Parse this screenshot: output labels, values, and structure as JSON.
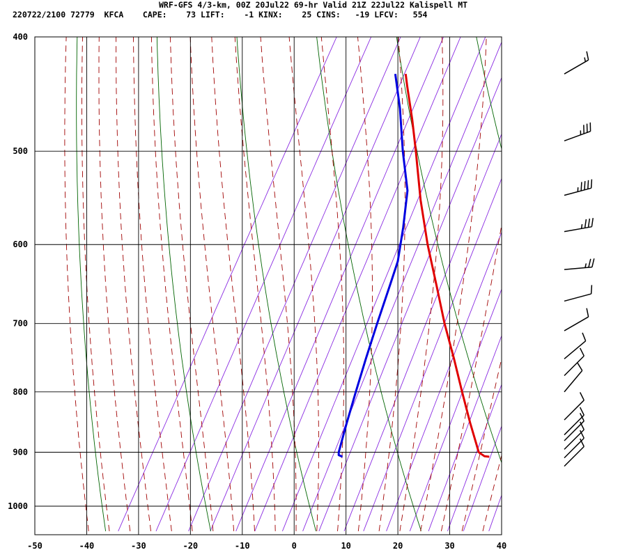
{
  "header": {
    "line1": "WRF-GFS 4/3-km, 00Z 20Jul22 69-hr Valid 21Z 22Jul22 Kalispell MT",
    "line2": "220722/2100 72779  KFCA    CAPE:    73 LIFT:    -1 KINX:    25 CINS:   -19 LFCV:   554"
  },
  "colors": {
    "temperature": "#e00000",
    "dewpoint": "#0000e0",
    "isotherm_grid": "#000000",
    "dry_adiabat": "#006400",
    "moist_adiabat": "#a00000",
    "mixing_ratio": "#8a2be2",
    "wind_barb": "#000000"
  },
  "chart_data": {
    "type": "line",
    "subtype": "skew-t log-p sounding",
    "title": "WRF-GFS 4/3-km, 00Z 20Jul22 69-hr Valid 21Z 22Jul22 Kalispell MT",
    "xlabel": "",
    "ylabel": "",
    "x_ticks": [
      "-50",
      "-40",
      "-30",
      "-20",
      "-10",
      "0",
      "10",
      "20",
      "30",
      "40"
    ],
    "y_ticks": [
      "400",
      "500",
      "600",
      "700",
      "800",
      "900",
      "1000"
    ],
    "xlim": [
      -50,
      40
    ],
    "ylim": [
      1050,
      400
    ],
    "y_scale": "log",
    "grid": true,
    "series": [
      {
        "key": "temperature",
        "points": [
          {
            "p": 908,
            "t": 29.5
          },
          {
            "p": 907,
            "t": 28.5
          },
          {
            "p": 900,
            "t": 27.0
          },
          {
            "p": 850,
            "t": 22.3
          },
          {
            "p": 800,
            "t": 17.5
          },
          {
            "p": 750,
            "t": 12.5
          },
          {
            "p": 700,
            "t": 7.0
          },
          {
            "p": 650,
            "t": 1.5
          },
          {
            "p": 600,
            "t": -4.5
          },
          {
            "p": 550,
            "t": -10.5
          },
          {
            "p": 500,
            "t": -16.5
          },
          {
            "p": 470,
            "t": -20.5
          },
          {
            "p": 440,
            "t": -25.0
          },
          {
            "p": 430,
            "t": -26.5
          }
        ]
      },
      {
        "key": "dewpoint",
        "points": [
          {
            "p": 908,
            "t": 1.2
          },
          {
            "p": 905,
            "t": 0.3
          },
          {
            "p": 900,
            "t": 0.0
          },
          {
            "p": 850,
            "t": -1.5
          },
          {
            "p": 800,
            "t": -3.0
          },
          {
            "p": 750,
            "t": -4.5
          },
          {
            "p": 700,
            "t": -6.0
          },
          {
            "p": 650,
            "t": -7.5
          },
          {
            "p": 620,
            "t": -8.5
          },
          {
            "p": 580,
            "t": -11.0
          },
          {
            "p": 540,
            "t": -14.0
          },
          {
            "p": 500,
            "t": -19.0
          },
          {
            "p": 460,
            "t": -24.0
          },
          {
            "p": 430,
            "t": -28.5
          }
        ]
      }
    ],
    "wind_barbs": [
      {
        "p": 430,
        "dir": 240,
        "kt": 15
      },
      {
        "p": 490,
        "dir": 250,
        "kt": 35
      },
      {
        "p": 545,
        "dir": 255,
        "kt": 45
      },
      {
        "p": 585,
        "dir": 260,
        "kt": 35
      },
      {
        "p": 630,
        "dir": 265,
        "kt": 25
      },
      {
        "p": 670,
        "dir": 255,
        "kt": 10
      },
      {
        "p": 710,
        "dir": 240,
        "kt": 10
      },
      {
        "p": 750,
        "dir": 230,
        "kt": 10
      },
      {
        "p": 775,
        "dir": 225,
        "kt": 10
      },
      {
        "p": 800,
        "dir": 220,
        "kt": 10
      },
      {
        "p": 845,
        "dir": 225,
        "kt": 10
      },
      {
        "p": 870,
        "dir": 225,
        "kt": 10
      },
      {
        "p": 880,
        "dir": 225,
        "kt": 10
      },
      {
        "p": 895,
        "dir": 225,
        "kt": 10
      },
      {
        "p": 910,
        "dir": 225,
        "kt": 10
      },
      {
        "p": 925,
        "dir": 225,
        "kt": 10
      }
    ]
  }
}
